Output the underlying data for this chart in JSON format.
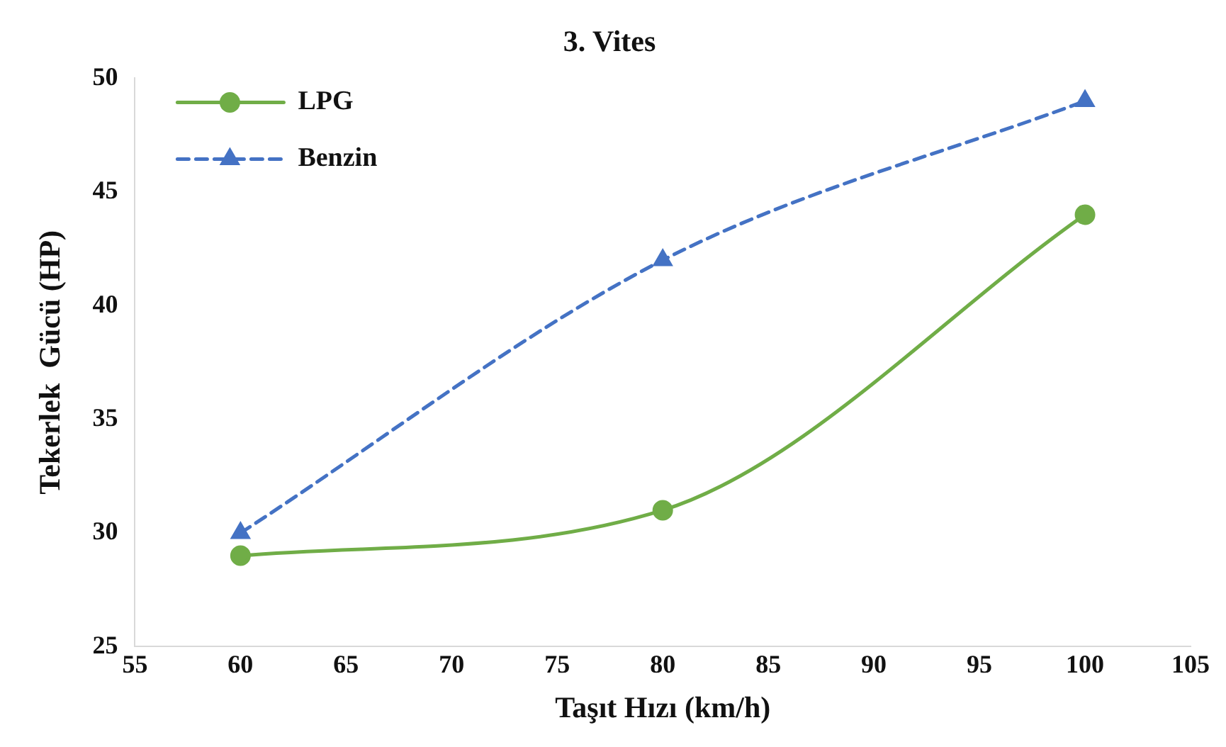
{
  "chart_data": {
    "type": "line",
    "title": "3. Vites",
    "xlabel": "Taşıt Hızı (km/h)",
    "ylabel": "Tekerlek  Gücü (HP)",
    "x": [
      60,
      80,
      100
    ],
    "series": [
      {
        "name": "LPG",
        "color": "#70ad47",
        "values": [
          29,
          31,
          44
        ],
        "marker": "circle",
        "line_style": "solid"
      },
      {
        "name": "Benzin",
        "color": "#4472c4",
        "values": [
          30,
          42,
          49
        ],
        "marker": "triangle",
        "line_style": "dashed"
      }
    ],
    "xlim": [
      55,
      105
    ],
    "xticks": [
      55,
      60,
      65,
      70,
      75,
      80,
      85,
      90,
      95,
      100,
      105
    ],
    "ylim": [
      25,
      50
    ],
    "yticks": [
      25,
      30,
      35,
      40,
      45,
      50
    ],
    "grid": false,
    "legend": "top left"
  }
}
